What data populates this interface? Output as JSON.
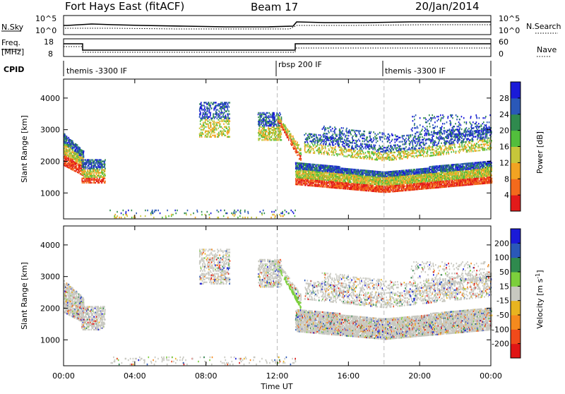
{
  "header": {
    "station": "Fort Hays East (fitACF)",
    "beam": "Beam 17",
    "date": "20/Jan/2014"
  },
  "params": {
    "nsky_label": "N.Sky",
    "nsky_ticks": [
      "10^5",
      "10^0"
    ],
    "nsearch_label": "N.Search",
    "nsearch_ticks": [
      "10^5",
      "10^0"
    ],
    "freq_label": "Freq.",
    "freq_unit": "[MHz]",
    "freq_ticks": [
      "18",
      "8"
    ],
    "nave_label": "Nave",
    "nave_ticks": [
      "60",
      "0"
    ],
    "cpid_label": "CPID",
    "cpid_segments": [
      {
        "label": "themis -3300 IF",
        "start_hour": 0
      },
      {
        "label": "rbsp 200 IF",
        "start_hour": 12
      },
      {
        "label": "themis -3300 IF",
        "start_hour": 18
      }
    ]
  },
  "chart_data": [
    {
      "type": "heatmap",
      "title": "",
      "xlabel": "Time UT",
      "ylabel": "Slant Range [km]",
      "x_ticks": [
        "00:00",
        "04:00",
        "08:00",
        "12:00",
        "16:00",
        "20:00",
        "00:00"
      ],
      "xlim_hours": [
        0,
        24
      ],
      "ylim": [
        180,
        4600
      ],
      "y_ticks": [
        1000,
        2000,
        3000,
        4000
      ],
      "colorbar": {
        "label": "Power [dB]",
        "ticks": [
          "4",
          "8",
          "12",
          "16",
          "20",
          "24",
          "28"
        ],
        "colors": [
          "#1a1ad8",
          "#2a58b8",
          "#2f8a4e",
          "#52be3c",
          "#c6c63a",
          "#f2a322",
          "#f36a1c",
          "#e21a1a"
        ]
      }
    },
    {
      "type": "heatmap",
      "title": "",
      "xlabel": "Time UT",
      "ylabel": "Slant Range [km]",
      "x_ticks": [
        "00:00",
        "04:00",
        "08:00",
        "12:00",
        "16:00",
        "20:00",
        "00:00"
      ],
      "xlim_hours": [
        0,
        24
      ],
      "ylim": [
        180,
        4600
      ],
      "y_ticks": [
        1000,
        2000,
        3000,
        4000
      ],
      "colorbar": {
        "label_prefix": "Velocity [m s",
        "label_exp": "-1",
        "label_suffix": "]",
        "ticks": [
          "200",
          "100",
          "50",
          "15",
          "-15",
          "-50",
          "-100",
          "-200"
        ],
        "colors": [
          "#1a1ad8",
          "#2a58b8",
          "#2f8a4e",
          "#7ccf3c",
          "#c8c8c0",
          "#e8b420",
          "#f58a1e",
          "#f04a1a",
          "#e01515"
        ]
      }
    }
  ],
  "palette": {
    "ground_scatter": "#c8c8c0",
    "frame": "#000000"
  }
}
